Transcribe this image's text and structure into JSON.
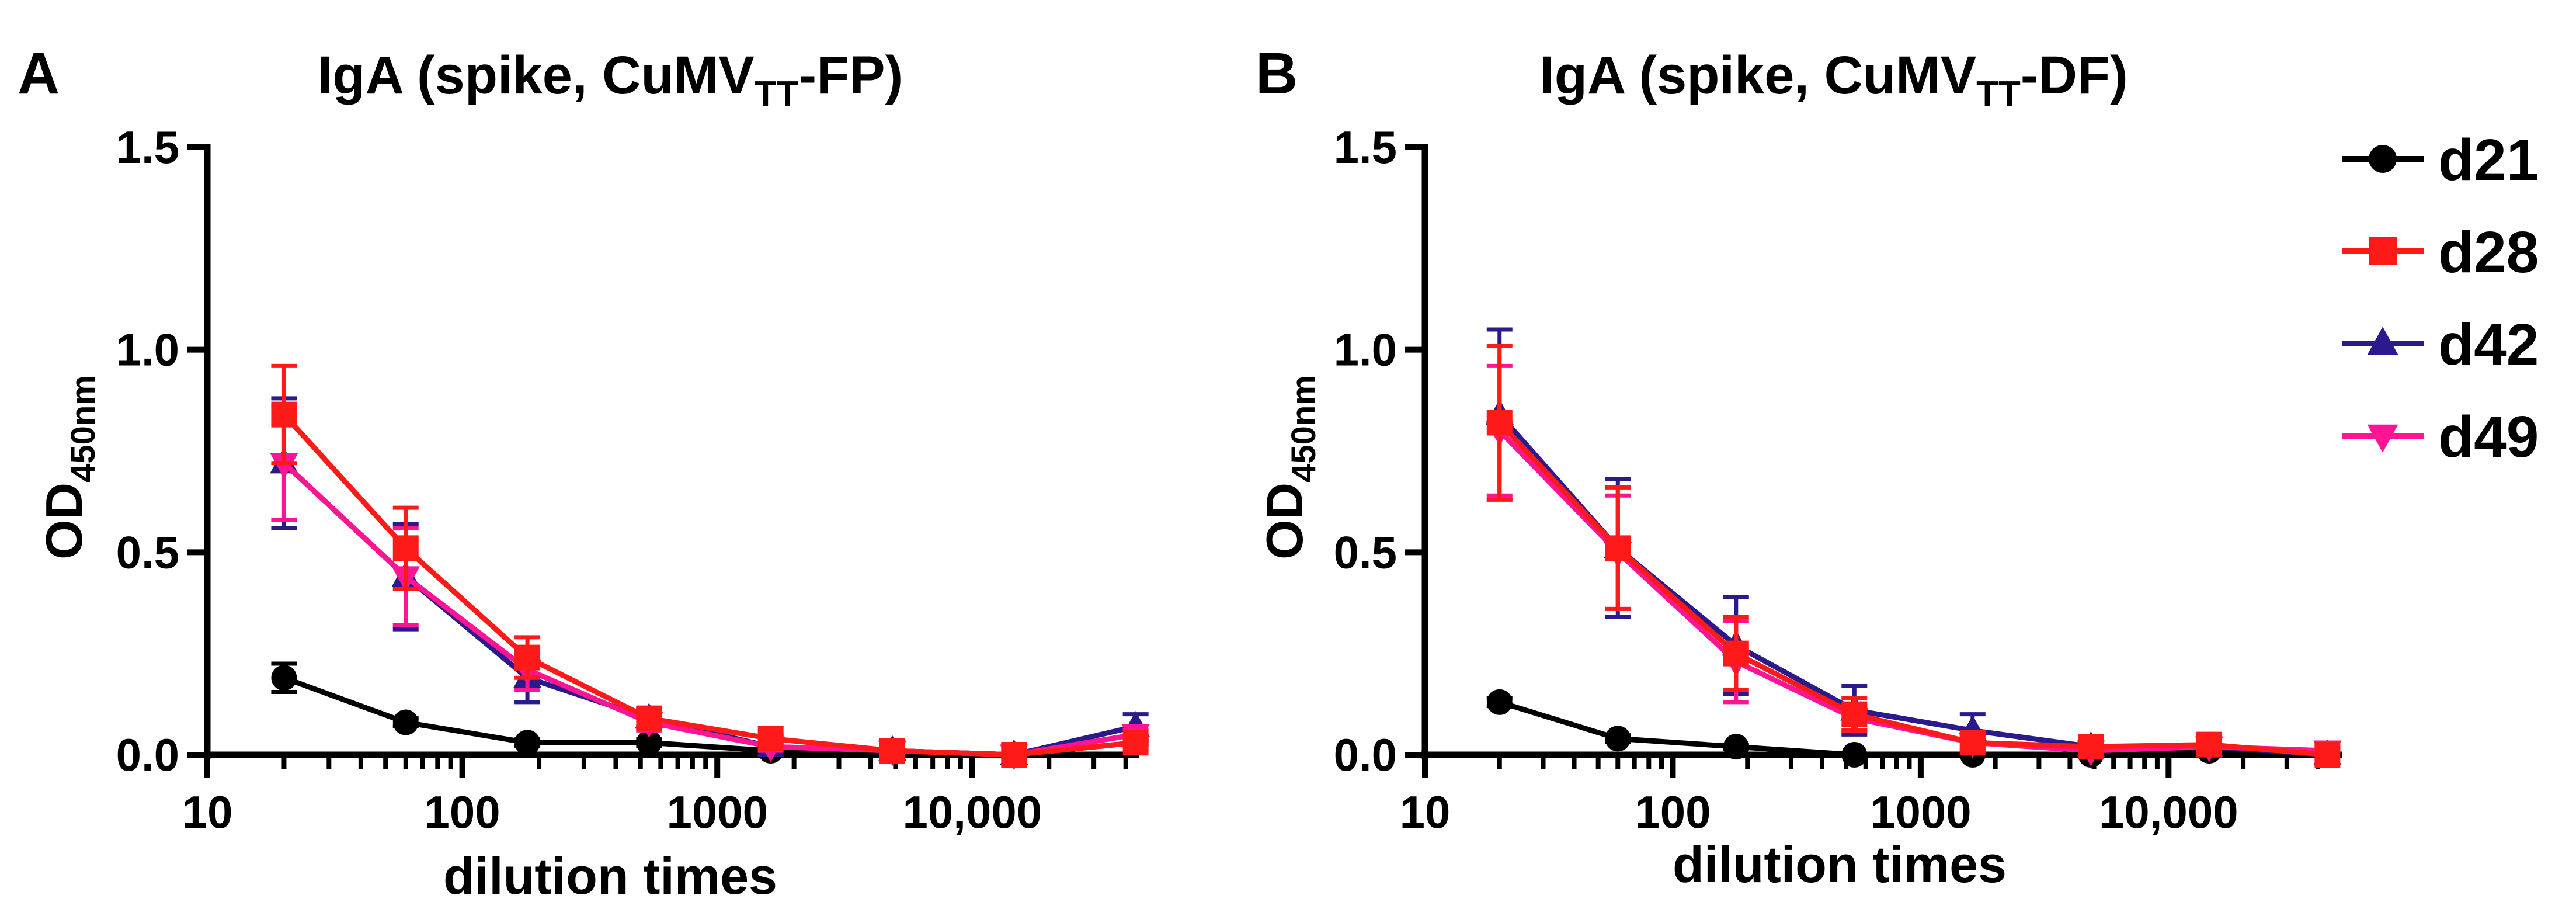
{
  "colors": {
    "d21": "#000000",
    "d28": "#ff1a1a",
    "d42": "#2b1a8c",
    "d49": "#ff1493",
    "axis": "#000000"
  },
  "legend": [
    {
      "key": "d21",
      "label": "d21",
      "marker": "circle"
    },
    {
      "key": "d28",
      "label": "d28",
      "marker": "square"
    },
    {
      "key": "d42",
      "label": "d42",
      "marker": "triangle-up"
    },
    {
      "key": "d49",
      "label": "d49",
      "marker": "triangle-down"
    }
  ],
  "chart_data": [
    {
      "type": "line",
      "panel": "A",
      "title_main": "IgA (spike, CuMV",
      "title_sub": "TT",
      "title_end": "-FP)",
      "xlabel": "dilution times",
      "ylabel_main": "OD",
      "ylabel_sub": "450nm",
      "x_scale": "log",
      "xlim": [
        10,
        45000
      ],
      "ylim": [
        0,
        1.5
      ],
      "xticks": [
        10,
        100,
        1000,
        10000
      ],
      "xtick_labels": [
        "10",
        "100",
        "1000",
        "10,000"
      ],
      "yticks": [
        0,
        0.5,
        1,
        1.5
      ],
      "ytick_labels": [
        "0.0",
        "0.5",
        "1.0",
        "1.5"
      ],
      "x": [
        20,
        60,
        180,
        540,
        1620,
        4860,
        14580,
        43740
      ],
      "series": [
        {
          "name": "d21",
          "values": [
            0.19,
            0.08,
            0.03,
            0.03,
            0.01,
            0.01,
            0.0,
            0.03
          ],
          "errors": [
            0.035,
            0.01,
            0.008,
            0.008,
            0.005,
            0.005,
            0.0,
            0.005
          ]
        },
        {
          "name": "d28",
          "values": [
            0.84,
            0.51,
            0.24,
            0.09,
            0.04,
            0.01,
            0.0,
            0.03
          ],
          "errors": [
            0.12,
            0.1,
            0.05,
            0.02,
            0.01,
            0.005,
            0.0,
            0.005
          ]
        },
        {
          "name": "d42",
          "values": [
            0.72,
            0.44,
            0.19,
            0.09,
            0.02,
            0.01,
            0.0,
            0.07
          ],
          "errors": [
            0.16,
            0.13,
            0.06,
            0.025,
            0.01,
            0.005,
            0.0,
            0.03
          ]
        },
        {
          "name": "d49",
          "values": [
            0.72,
            0.44,
            0.21,
            0.08,
            0.02,
            0.01,
            0.0,
            0.05
          ],
          "errors": [
            0.14,
            0.12,
            0.05,
            0.02,
            0.01,
            0.005,
            0.0,
            0.01
          ]
        }
      ]
    },
    {
      "type": "line",
      "panel": "B",
      "title_main": "IgA (spike, CuMV",
      "title_sub": "TT",
      "title_end": "-DF)",
      "xlabel": "dilution times",
      "ylabel_main": "OD",
      "ylabel_sub": "450nm",
      "x_scale": "log",
      "xlim": [
        10,
        50000
      ],
      "ylim": [
        0,
        1.5
      ],
      "xticks": [
        10,
        100,
        1000,
        10000
      ],
      "xtick_labels": [
        "10",
        "100",
        "1000",
        "10,000"
      ],
      "yticks": [
        0,
        0.5,
        1,
        1.5
      ],
      "ytick_labels": [
        "0.0",
        "0.5",
        "1.0",
        "1.5"
      ],
      "x": [
        20,
        60,
        180,
        540,
        1620,
        4860,
        14580,
        43740
      ],
      "series": [
        {
          "name": "d21",
          "values": [
            0.13,
            0.04,
            0.02,
            0.0,
            0.0,
            0.0,
            0.01,
            0.0
          ],
          "errors": [
            0.01,
            0.008,
            0.005,
            0.0,
            0.0,
            0.0,
            0.005,
            0.0
          ]
        },
        {
          "name": "d28",
          "values": [
            0.82,
            0.51,
            0.25,
            0.1,
            0.03,
            0.02,
            0.025,
            0.0
          ],
          "errors": [
            0.19,
            0.15,
            0.09,
            0.04,
            0.02,
            0.005,
            0.005,
            0.0
          ]
        },
        {
          "name": "d42",
          "values": [
            0.84,
            0.51,
            0.27,
            0.11,
            0.06,
            0.02,
            0.02,
            0.0
          ],
          "errors": [
            0.21,
            0.17,
            0.12,
            0.06,
            0.04,
            0.005,
            0.005,
            0.0
          ]
        },
        {
          "name": "d49",
          "values": [
            0.8,
            0.5,
            0.23,
            0.09,
            0.03,
            0.01,
            0.02,
            0.01
          ],
          "errors": [
            0.16,
            0.14,
            0.1,
            0.03,
            0.02,
            0.005,
            0.005,
            0.003
          ]
        }
      ]
    }
  ]
}
